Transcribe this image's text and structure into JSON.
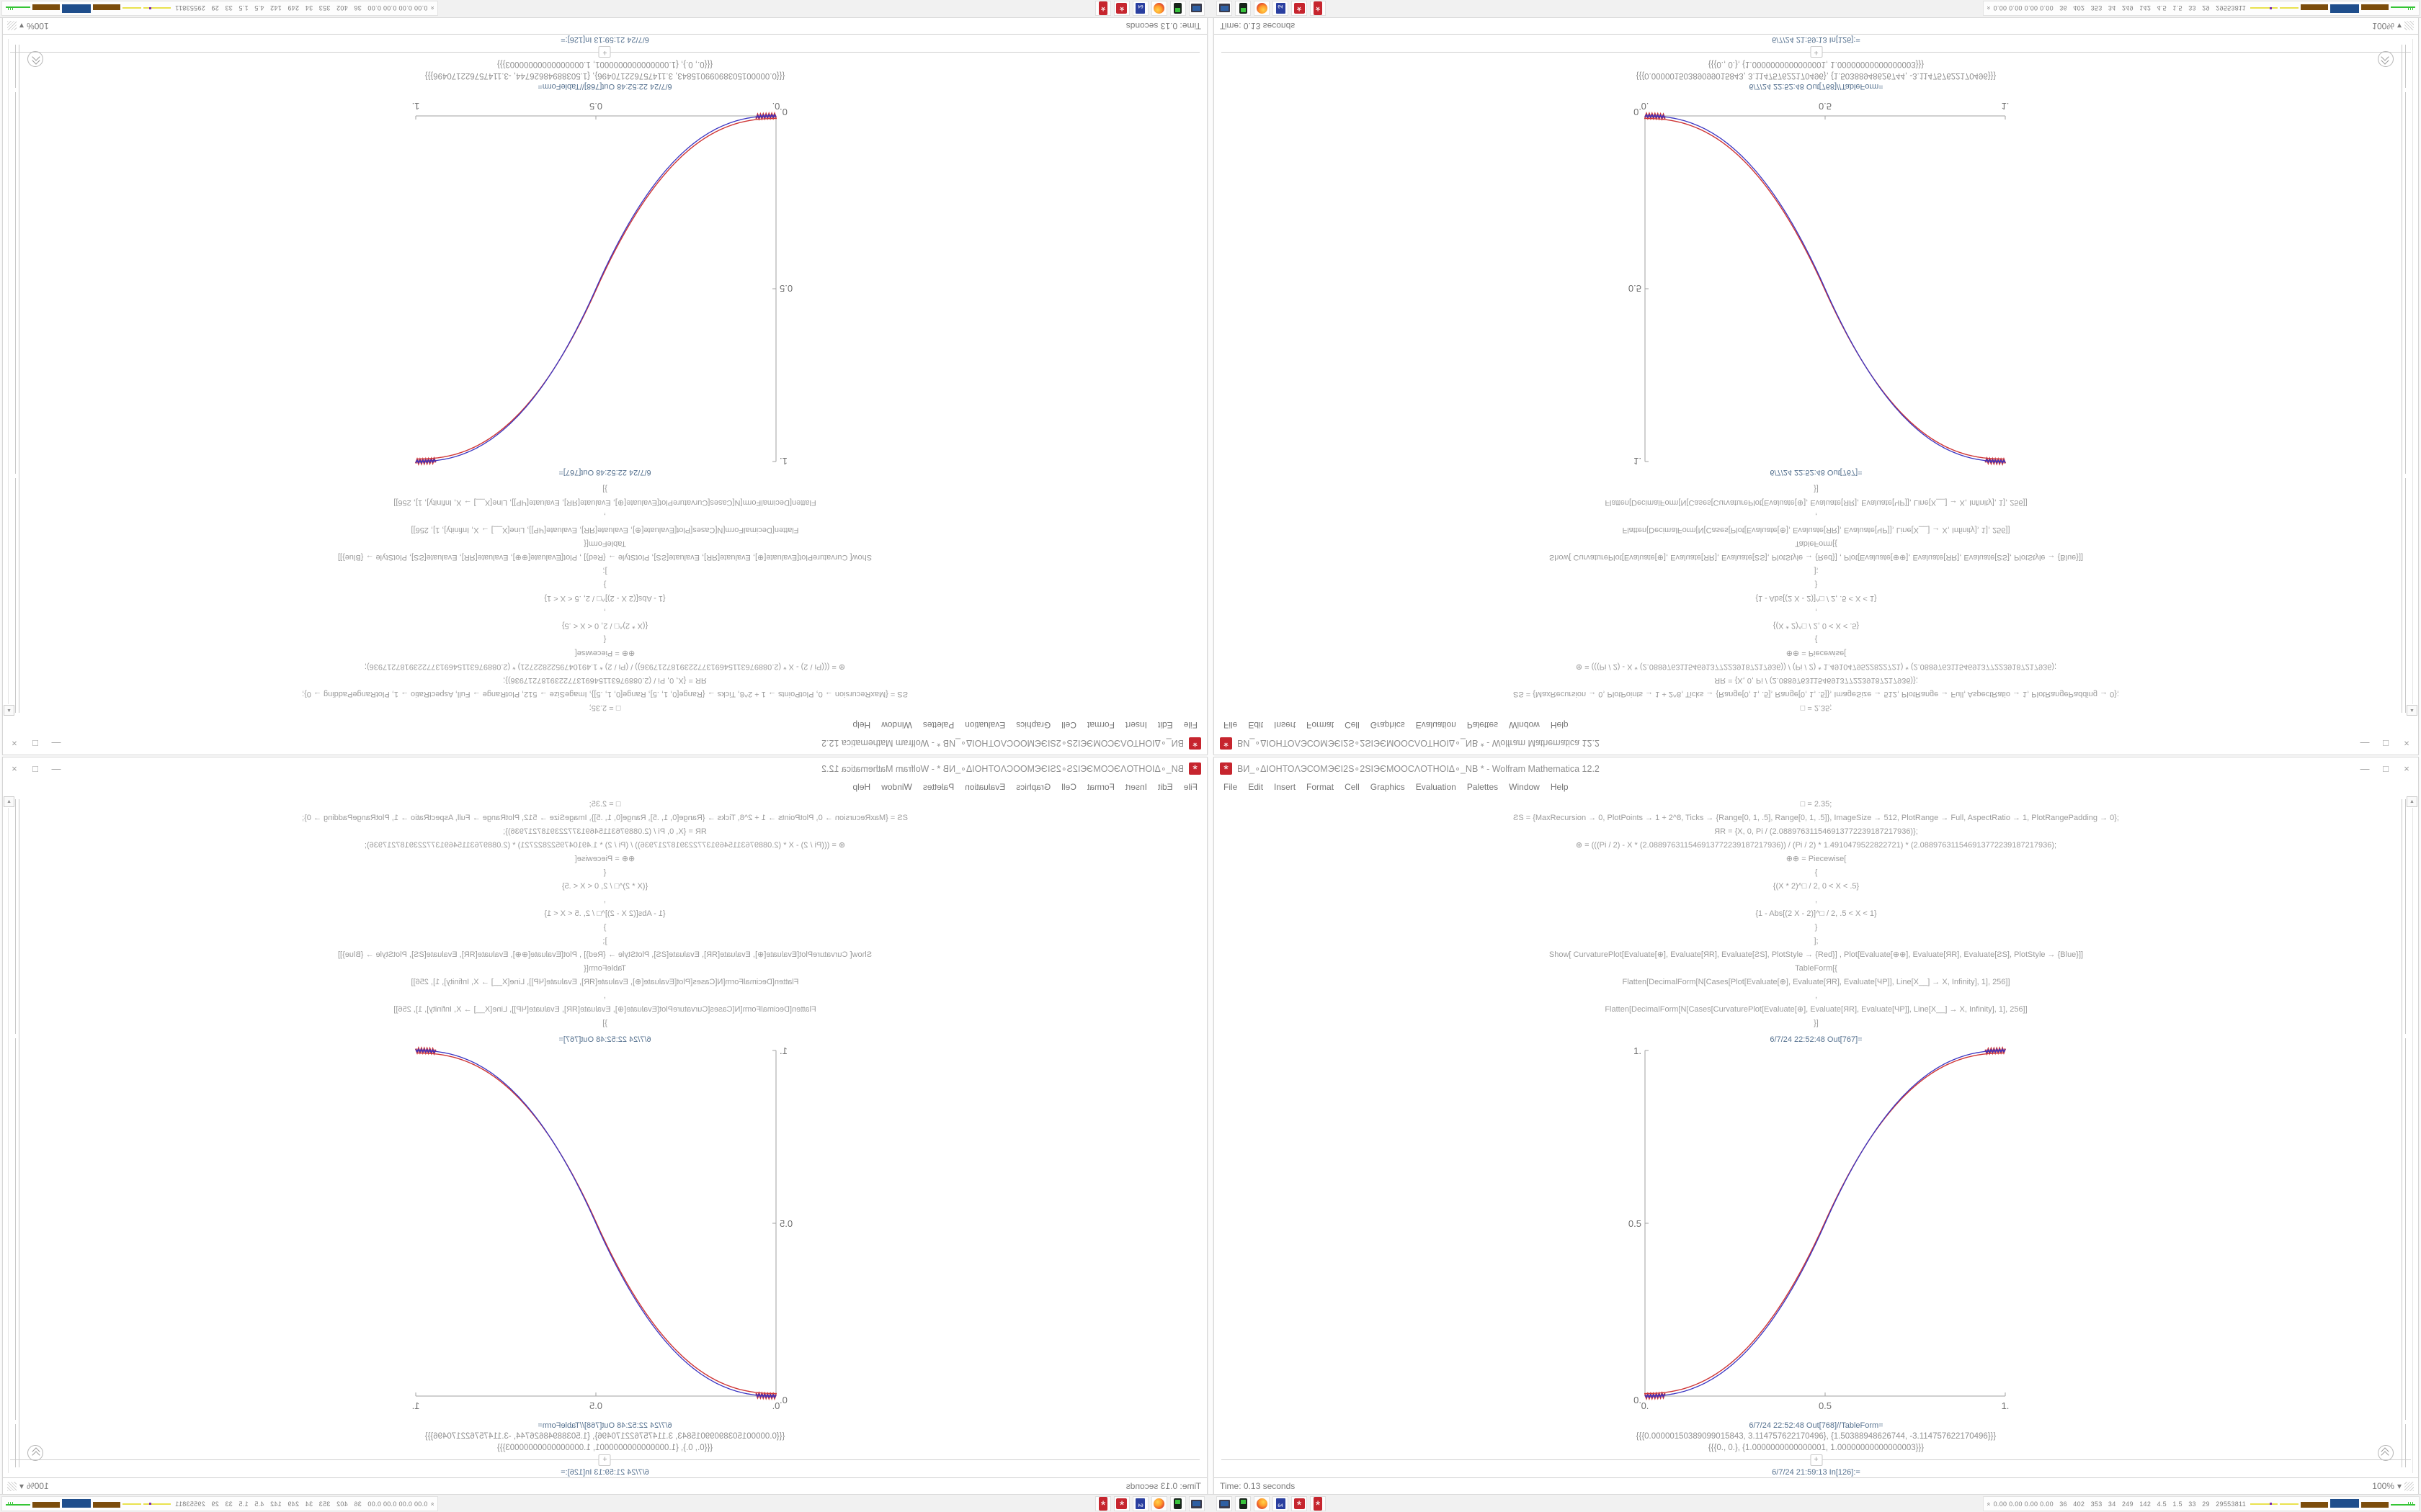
{
  "window": {
    "title": "ВИ_∘ΔІОНТОΛЭСОМЭЄІ2Ѕ∘2ЅІЭЄМООСΛОТНОІΔ∘_NB * - Wolfram Mathematica 12.2",
    "app_icon_glyph": "*",
    "controls": {
      "minimize": "—",
      "maximize": "□",
      "close": "×"
    },
    "menu": [
      "File",
      "Edit",
      "Insert",
      "Format",
      "Cell",
      "Graphics",
      "Evaluation",
      "Palettes",
      "Window",
      "Help"
    ]
  },
  "notebook": {
    "code_lines": [
      "□ = 2.35;",
      "ƧS = {MaxRecursion → 0, PlotPoints → 1 + 2^8, Ticks → {Range[0, 1, .5], Range[0, 1, .5]}, ImageSize → 512, PlotRange → Full, AspectRatio → 1, PlotRangePadding → 0};",
      "ЯR = {X, 0, Pi / (2.088976311546913772239187217936)};",
      "⊕ = (((Pi / 2) - X * (2.088976311546913772239187217936)) / (Pi / 2) * 1.4910479522822721) * (2.088976311546913772239187217936);",
      "⊕⊕ = Piecewise[",
      "{",
      "{(X * 2)^□ / 2, 0 < X < .5}",
      ",",
      "{1 - Abs[(2 X - 2)]^□ / 2, .5 < X < 1}",
      "}",
      "];",
      "Show[  CurvaturePlot[Evaluate[⊕], Evaluate[ЯR], Evaluate[ƧS], PlotStyle → {Red}]  ,   Plot[Evaluate[⊕⊕], Evaluate[ЯR], Evaluate[ƧS], PlotStyle → {Blue}]]",
      "TableForm[{",
      "Flatten[DecimalForm[N[Cases[Plot[Evaluate[⊕], Evaluate[ЯR], Evaluate[ЧP]], Line[X__] → X, Infinity], 1], 256]]",
      ",",
      "Flatten[DecimalForm[N[Cases[CurvaturePlot[Evaluate[⊕], Evaluate[ЯR], Evaluate[ЧP]], Line[X__] → X, Infinity], 1], 256]]",
      "}]"
    ],
    "out_plot_label": "6/7/24 22:52:48 Out[767]=",
    "out_table_label": "6/7/24 22:52:48 Out[768]//TableForm=",
    "table_rows": [
      "{{{0.00000150389099015843, 3.114757622170496}, {1.50388948626744, -3.114757622170496}}}",
      "{{{0., 0.}, {1.0000000000000001, 1.00000000000000003}}}"
    ],
    "insert_plus": "+",
    "in_label": "6/7/24 21:59:13 In[126]:="
  },
  "status": {
    "time": "Time: 0.13 seconds",
    "zoom": "100%",
    "zoom_caret": "▾"
  },
  "taskbar": {
    "icons": [
      "display-icon",
      "handheld-device-icon",
      "firefox-icon",
      "floppy64-icon",
      "mathematica-icon",
      "mathematica-icon"
    ],
    "floppy_label": "64",
    "rosette_glyph": "*",
    "tray_chevron": "«",
    "tray_values": "0.00 0.00 0.00 0.00   36   402   353   34   249   142   4.5   1.5   33   29   29553811"
  },
  "chart_data": {
    "type": "line",
    "title": "",
    "xlabel": "",
    "ylabel": "",
    "xlim": [
      0,
      1
    ],
    "ylim": [
      0,
      1
    ],
    "grid": false,
    "legend": "none",
    "exponent": 2.35,
    "formula": "y = (2x)^2.35 / 2 for 0<x<0.5 ; y = 1 - |2x-2|^2.35 / 2 for 0.5<x<1",
    "x": [
      0,
      0.1,
      0.2,
      0.3,
      0.4,
      0.5,
      0.6,
      0.7,
      0.8,
      0.9,
      1.0
    ],
    "series": [
      {
        "name": "CurvaturePlot (Red)",
        "color": "#cf3535",
        "values": [
          0,
          0.011,
          0.058,
          0.15,
          0.296,
          0.5,
          0.704,
          0.85,
          0.942,
          0.989,
          1.0
        ]
      },
      {
        "name": "Plot piecewise (Blue)",
        "color": "#3b35c2",
        "values": [
          0,
          0.011,
          0.058,
          0.15,
          0.296,
          0.5,
          0.704,
          0.85,
          0.942,
          0.989,
          1.0
        ]
      }
    ],
    "xticks": [
      {
        "v": 0,
        "label": "0."
      },
      {
        "v": 0.5,
        "label": "0.5"
      },
      {
        "v": 1,
        "label": "1."
      }
    ],
    "yticks": [
      {
        "v": 0,
        "label": "0."
      },
      {
        "v": 0.5,
        "label": "0.5"
      },
      {
        "v": 1,
        "label": "1."
      }
    ],
    "axis_color": "#a2a2a2",
    "tick_label_color": "#6f6f6f"
  }
}
